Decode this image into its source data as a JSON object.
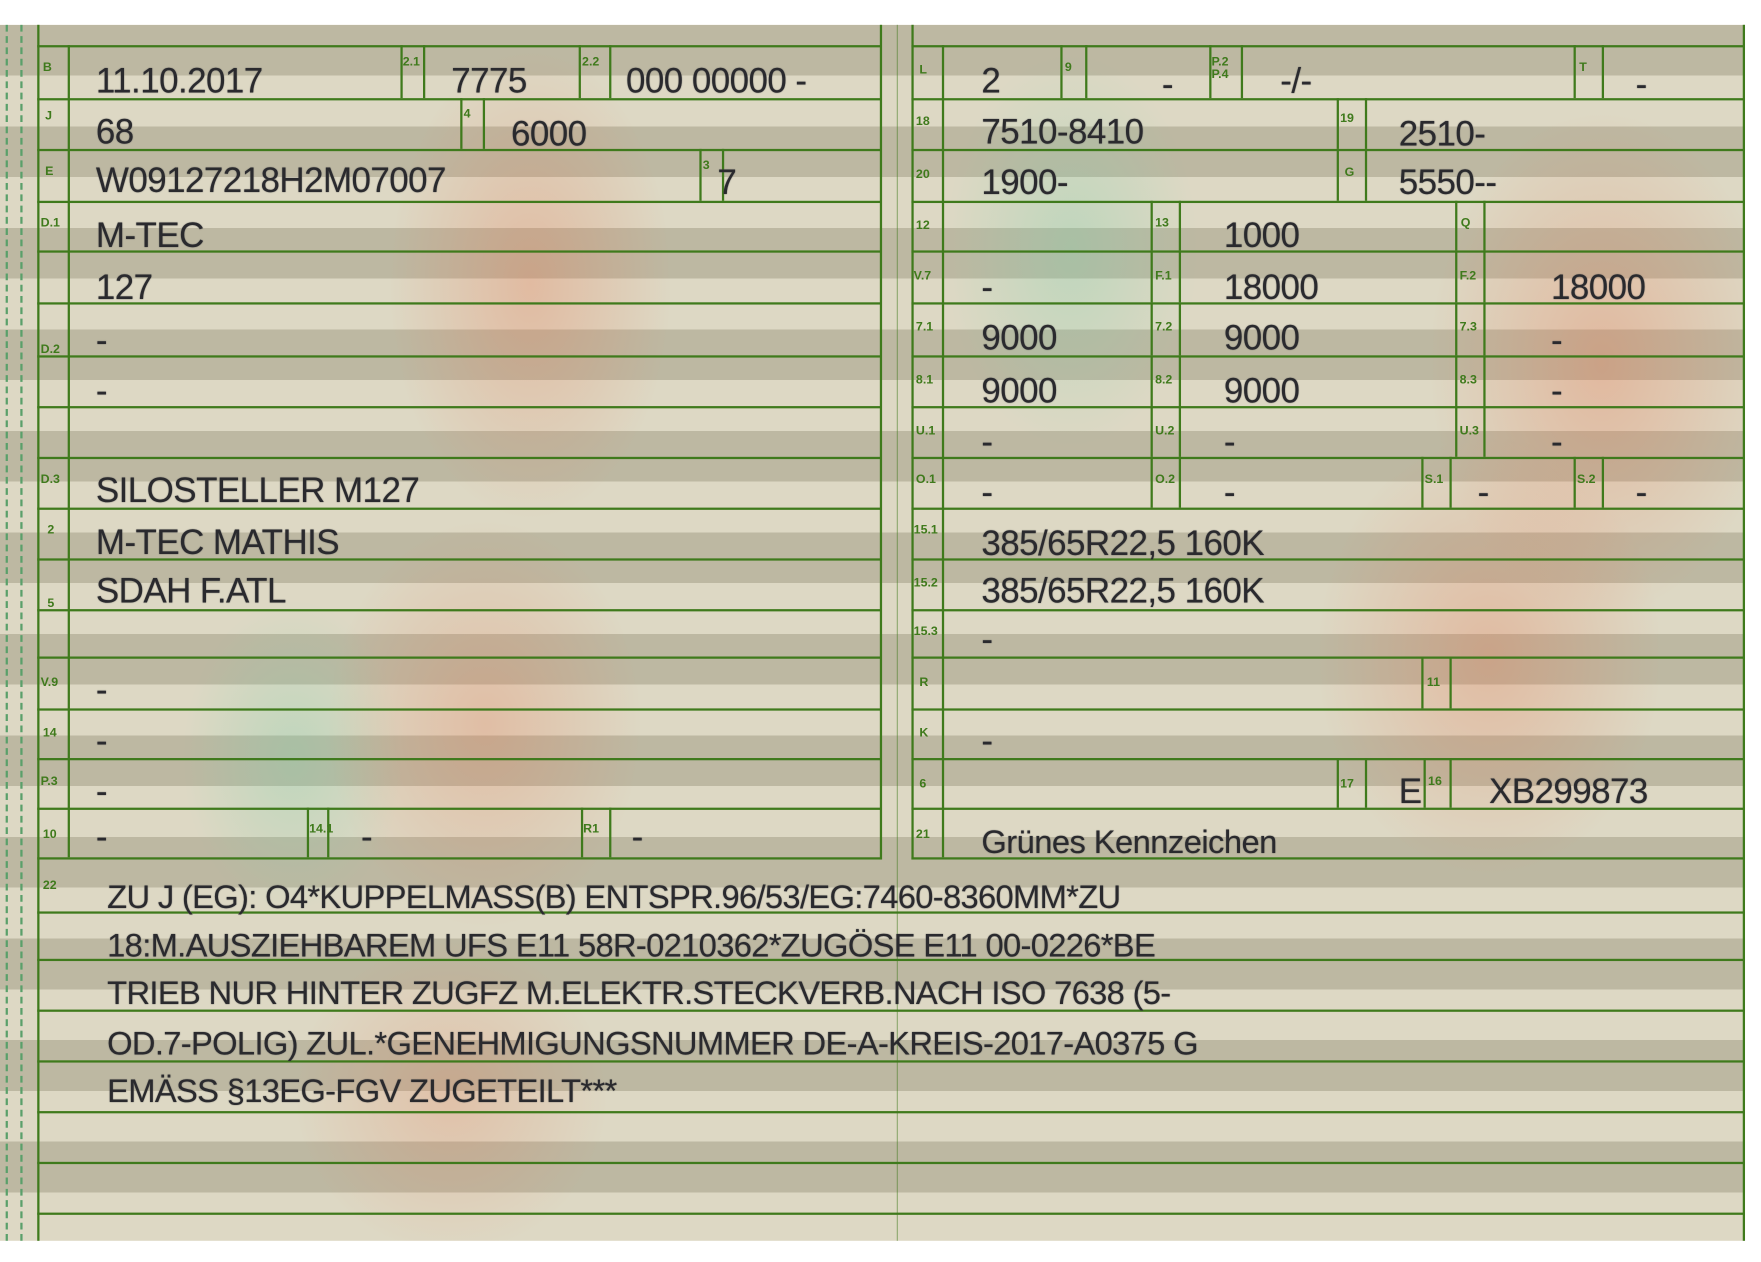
{
  "left_fields": [
    {
      "label": "B",
      "value": "11.10.2017"
    },
    {
      "label": "2.1",
      "value": "7775"
    },
    {
      "label": "2.2",
      "value": "000 00000 -"
    },
    {
      "label": "J",
      "value": "68"
    },
    {
      "label": "4",
      "value": "6000"
    },
    {
      "label": "E",
      "value": "W09127218H2M07007"
    },
    {
      "label": "3",
      "value": "7"
    },
    {
      "label": "D.1",
      "value": "M-TEC"
    },
    {
      "value": "127"
    },
    {
      "label": "D.2",
      "value": "-"
    },
    {
      "value": "-"
    },
    {
      "label": "D.3",
      "value": "SILOSTELLER M127"
    },
    {
      "label": "2",
      "value": "M-TEC MATHIS"
    },
    {
      "label": "5",
      "value": "SDAH F.ATL"
    },
    {
      "label": "V.9",
      "value": "-"
    },
    {
      "label": "14",
      "value": "-"
    },
    {
      "label": "P.3",
      "value": "-"
    },
    {
      "label": "10",
      "value": "-"
    },
    {
      "label": "14.1",
      "value": "-"
    },
    {
      "label": "R1",
      "value": "-"
    }
  ],
  "right_fields": [
    {
      "label": "L",
      "value": "2"
    },
    {
      "label": "9",
      "value": "-"
    },
    {
      "label": "P.2\nP.4",
      "value": "-/-"
    },
    {
      "label": "T",
      "value": "-"
    },
    {
      "label": "18",
      "value": "7510-8410"
    },
    {
      "label": "19",
      "value": "2510-"
    },
    {
      "label": "20",
      "value": "1900-"
    },
    {
      "label": "G",
      "value": "5550--"
    },
    {
      "label": "12"
    },
    {
      "label": "13",
      "value": "1000"
    },
    {
      "label": "Q"
    },
    {
      "label": "V.7",
      "value": "-"
    },
    {
      "label": "F.1",
      "value": "18000"
    },
    {
      "label": "F.2",
      "value": "18000"
    },
    {
      "label": "7.1",
      "value": "9000"
    },
    {
      "label": "7.2",
      "value": "9000"
    },
    {
      "label": "7.3",
      "value": "-"
    },
    {
      "label": "8.1",
      "value": "9000"
    },
    {
      "label": "8.2",
      "value": "9000"
    },
    {
      "label": "8.3",
      "value": "-"
    },
    {
      "label": "U.1",
      "value": "-"
    },
    {
      "label": "U.2",
      "value": "-"
    },
    {
      "label": "U.3",
      "value": "-"
    },
    {
      "label": "O.1",
      "value": "-"
    },
    {
      "label": "O.2",
      "value": "-"
    },
    {
      "label": "S.1",
      "value": "-"
    },
    {
      "label": "S.2",
      "value": "-"
    },
    {
      "label": "15.1",
      "value": "385/65R22,5 160K"
    },
    {
      "label": "15.2",
      "value": "385/65R22,5 160K"
    },
    {
      "label": "15.3",
      "value": "-"
    },
    {
      "label": "R"
    },
    {
      "label": "11"
    },
    {
      "label": "K",
      "value": "-"
    },
    {
      "label": "6"
    },
    {
      "label": "17",
      "value": "E"
    },
    {
      "label": "16",
      "value": "XB299873"
    },
    {
      "label": "21",
      "value": "Grünes Kennzeichen"
    }
  ],
  "remarks": {
    "label": "22",
    "lines": [
      "ZU J (EG): O4*KUPPELMASS(B) ENTSPR.96/53/EG:7460-8360MM*ZU",
      "18:M.AUSZIEHBAREM UFS E11 58R-0210362*ZUGÖSE E11 00-0226*BE",
      "TRIEB NUR HINTER ZUGFZ M.ELEKTR.STECKVERB.NACH ISO 7638 (5-",
      "OD.7-POLIG) ZUL.*GENEHMIGUNGSNUMMER DE-A-KREIS-2017-A0375 G",
      "EMÄSS §13EG-FGV ZUGETEILT***"
    ]
  },
  "colors": {
    "line": "#3f7a1c",
    "text": "#2a2a2e",
    "band_dark": "#bdb8a2",
    "band_light": "#ddd8c4",
    "guilloche_red": "#eb6e46",
    "guilloche_green": "#78d2aa"
  }
}
